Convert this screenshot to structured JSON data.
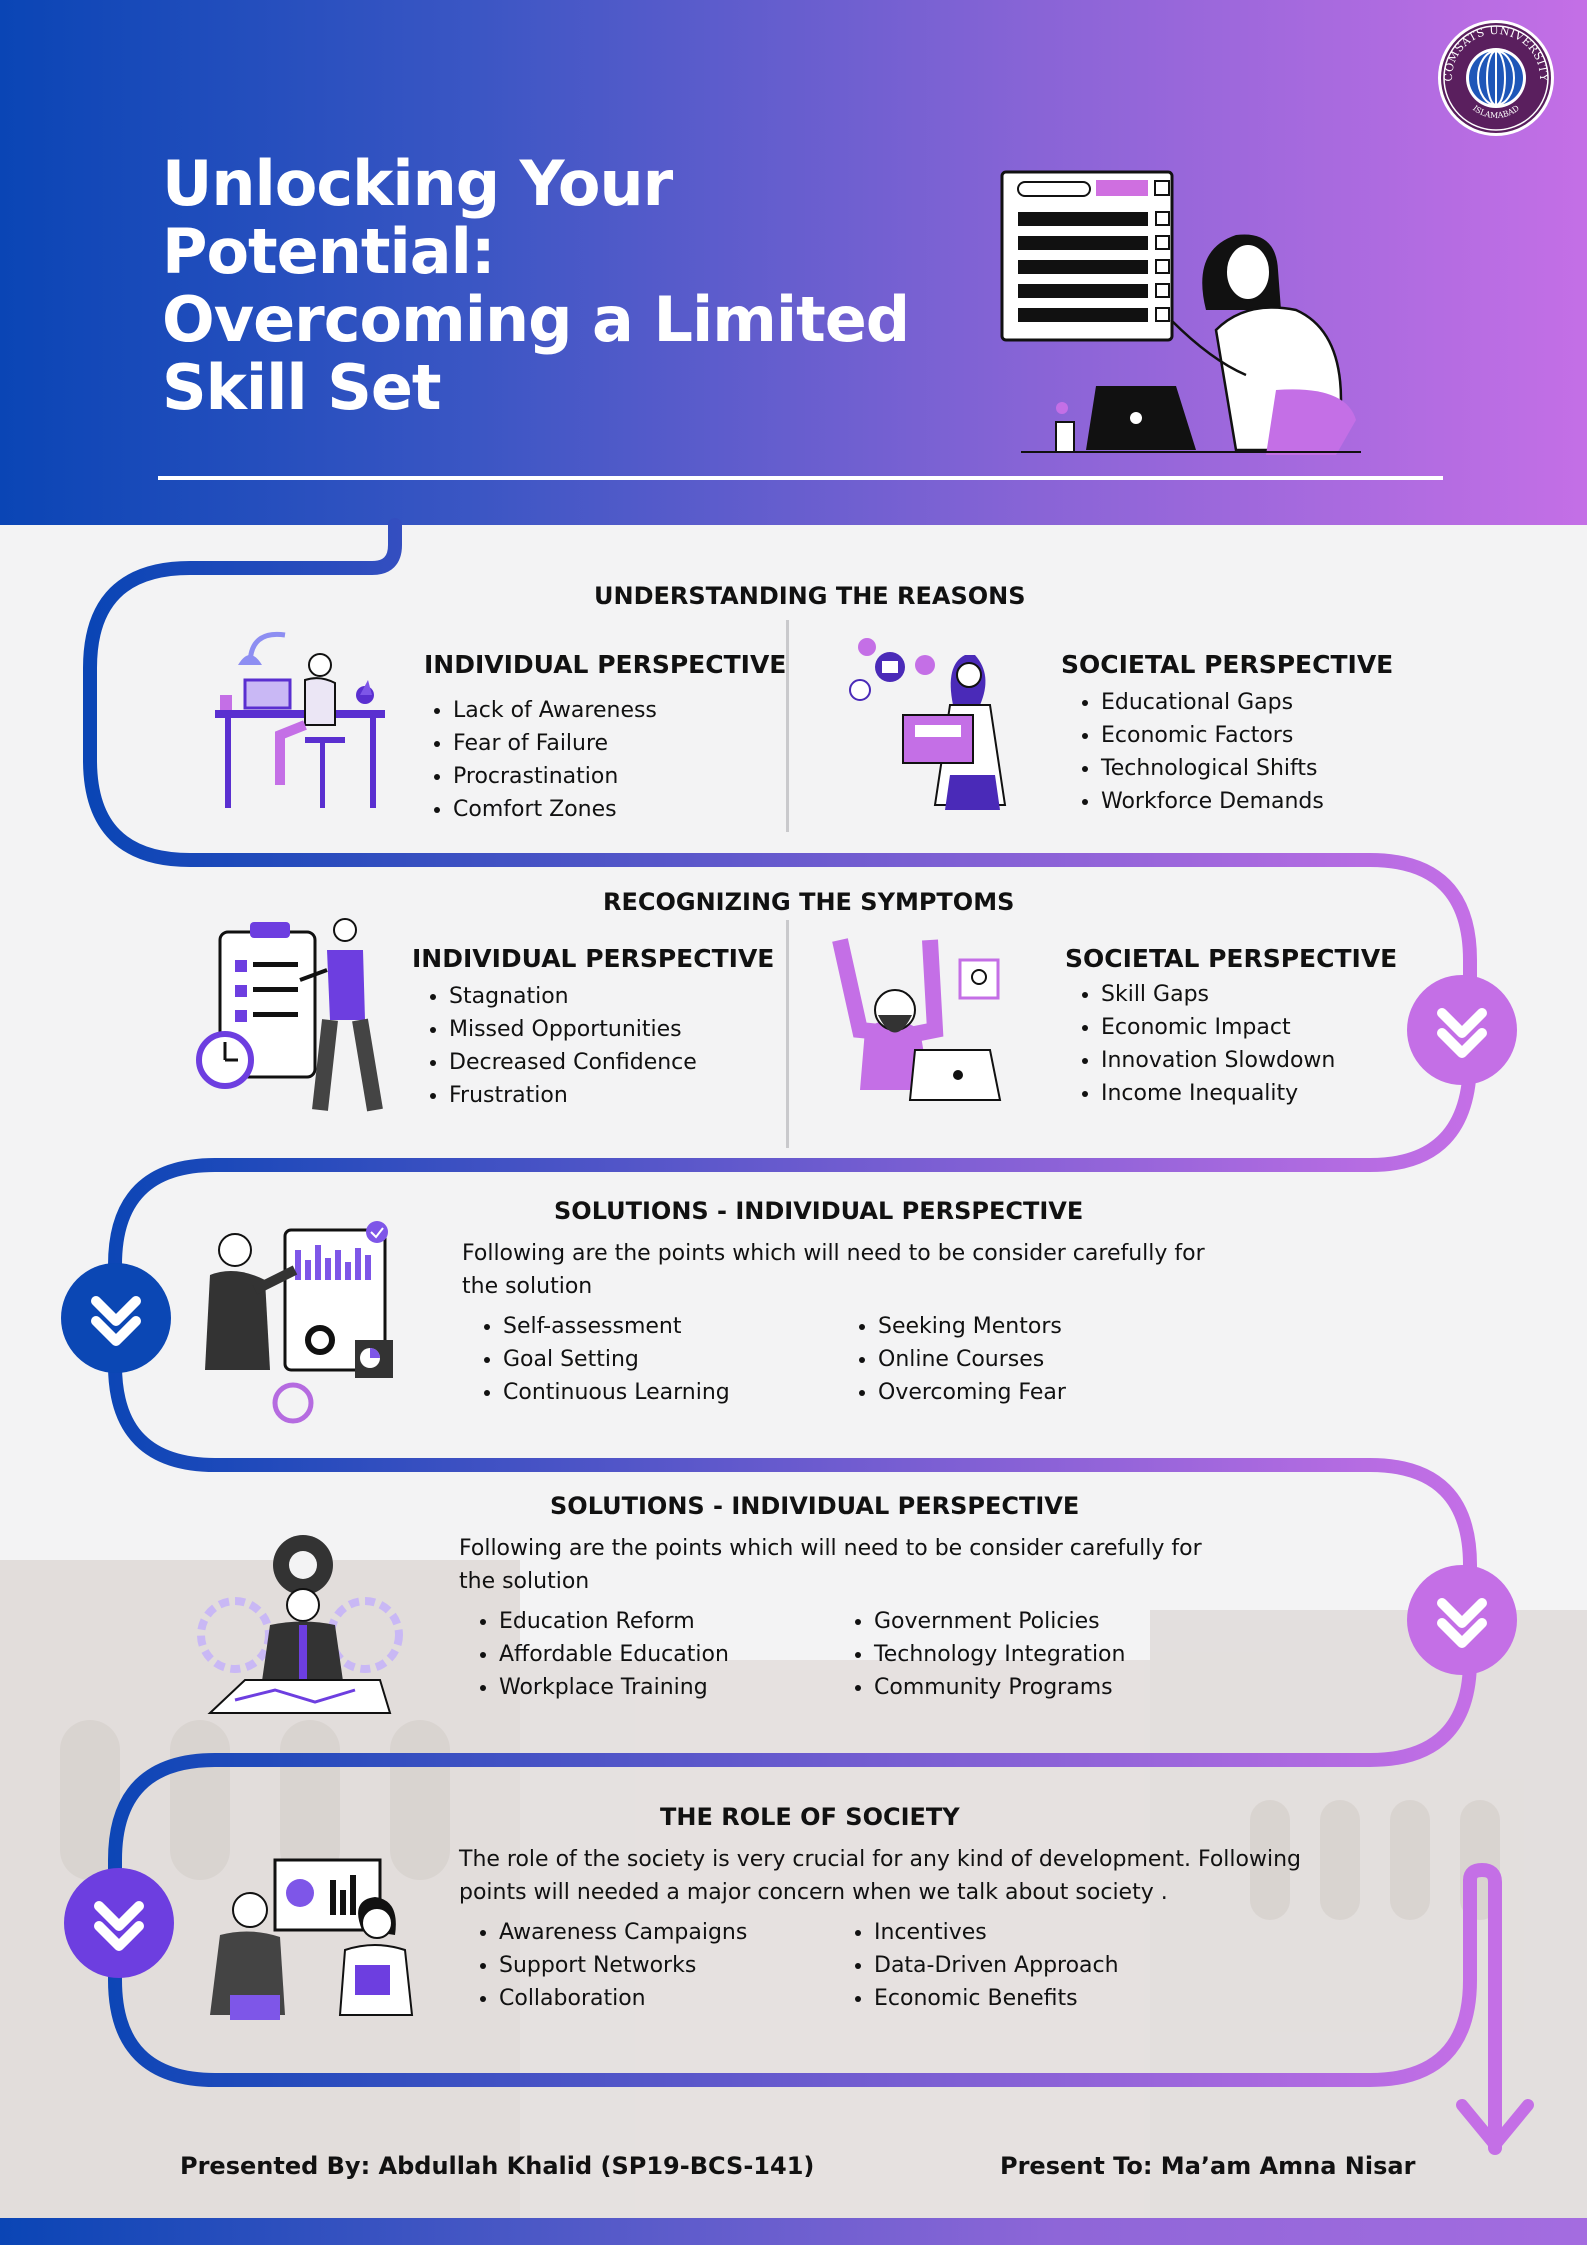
{
  "header": {
    "title_lines": [
      "Unlocking Your",
      "Potential:",
      "Overcoming a Limited",
      "Skill Set"
    ]
  },
  "logo": {
    "top_text": "COMSATS UNIVERSITY",
    "bottom_text": "ISLAMABAD"
  },
  "colors": {
    "blue": "#0a45b5",
    "purple": "#c46fe6",
    "violet": "#6d3ee0",
    "text": "#111111"
  },
  "sections": {
    "reasons": {
      "title": "UNDERSTANDING THE REASONS",
      "individual": {
        "heading": "INDIVIDUAL PERSPECTIVE",
        "items": [
          "Lack of Awareness",
          "Fear of Failure",
          "Procrastination",
          "Comfort Zones"
        ]
      },
      "societal": {
        "heading": "SOCIETAL PERSPECTIVE",
        "items": [
          "Educational Gaps",
          "Economic Factors",
          "Technological Shifts",
          "Workforce Demands"
        ]
      }
    },
    "symptoms": {
      "title": "RECOGNIZING THE SYMPTOMS",
      "individual": {
        "heading": "INDIVIDUAL PERSPECTIVE",
        "items": [
          "Stagnation",
          "Missed Opportunities",
          "Decreased Confidence",
          "Frustration"
        ]
      },
      "societal": {
        "heading": "SOCIETAL PERSPECTIVE",
        "items": [
          "Skill Gaps",
          "Economic Impact",
          "Innovation Slowdown",
          "Income Inequality"
        ]
      }
    },
    "solutions_individual": {
      "title": "SOLUTIONS - INDIVIDUAL PERSPECTIVE",
      "intro": "Following are the points which will need to be consider carefully for the solution",
      "col1": [
        "Self-assessment",
        "Goal Setting",
        "Continuous Learning"
      ],
      "col2": [
        "Seeking Mentors",
        "Online Courses",
        "Overcoming Fear"
      ]
    },
    "solutions_societal": {
      "title": "SOLUTIONS - INDIVIDUAL PERSPECTIVE",
      "intro": "Following are the points which will need to be consider carefully for the solution",
      "col1": [
        "Education Reform",
        "Affordable Education",
        "Workplace Training"
      ],
      "col2": [
        "Government Policies",
        "Technology Integration",
        "Community Programs"
      ]
    },
    "role": {
      "title": "THE ROLE OF SOCIETY",
      "intro": "The role of the society is very crucial for any kind of development. Following points will needed a major concern when we talk about society .",
      "col1": [
        "Awareness Campaigns",
        "Support Networks",
        "Collaboration"
      ],
      "col2": [
        "Incentives",
        "Data-Driven Approach",
        "Economic Benefits"
      ]
    }
  },
  "footer": {
    "presented_by": "Presented By:  Abdullah Khalid  (SP19-BCS-141)",
    "present_to": "Present To:   Ma’am Amna Nisar"
  }
}
